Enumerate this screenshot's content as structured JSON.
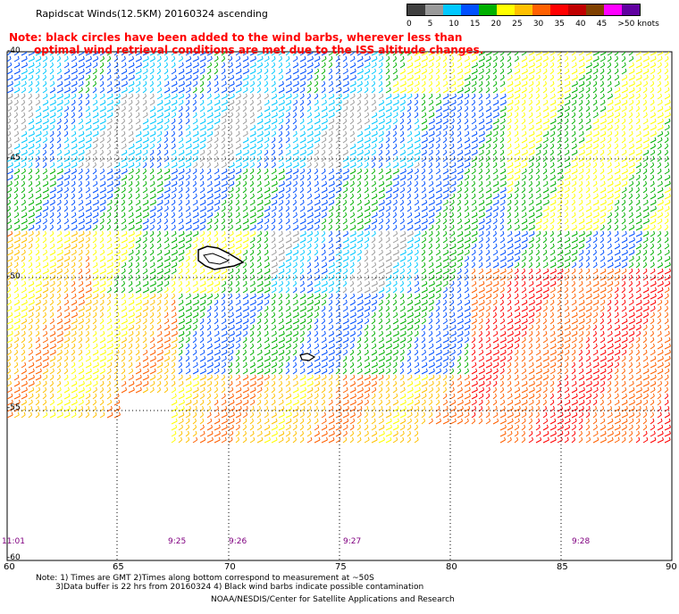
{
  "header": {
    "title": "Rapidscat Winds(12.5KM) 20160324 ascending",
    "note_line1": "Note: black circles have been added to the wind barbs, wherever less than",
    "note_line2": "optimal wind retrieval conditions are met due to the ISS altitude changes."
  },
  "color_scale": {
    "labels": [
      "0",
      "5",
      "10",
      "15",
      "20",
      "25",
      "30",
      "35",
      "40",
      "45",
      ">50 knots"
    ],
    "colors": [
      "#404040",
      "#9a9a9a",
      "#00c8ff",
      "#0050ff",
      "#00b000",
      "#ffff00",
      "#ffc000",
      "#ff6000",
      "#ff0000",
      "#c00000",
      "#804000",
      "#ff00ff",
      "#6000a0"
    ]
  },
  "axes": {
    "lat_labels": [
      "-40",
      "-45",
      "-50",
      "-55",
      "-60"
    ],
    "lon_labels": [
      "60",
      "65",
      "70",
      "75",
      "80",
      "85",
      "90"
    ]
  },
  "pass_times": [
    "11:01",
    "9:25",
    "9:26",
    "9:27",
    "9:28"
  ],
  "footer": {
    "note1": "Note: 1) Times are GMT 2)Times along bottom correspond to measurement at ~50S",
    "note2": "3)Data buffer is 22 hrs from 20160324 4) Black wind barbs indicate possible contamination",
    "credits": "NOAA/NESDIS/Center for Satellite Applications and Research"
  }
}
